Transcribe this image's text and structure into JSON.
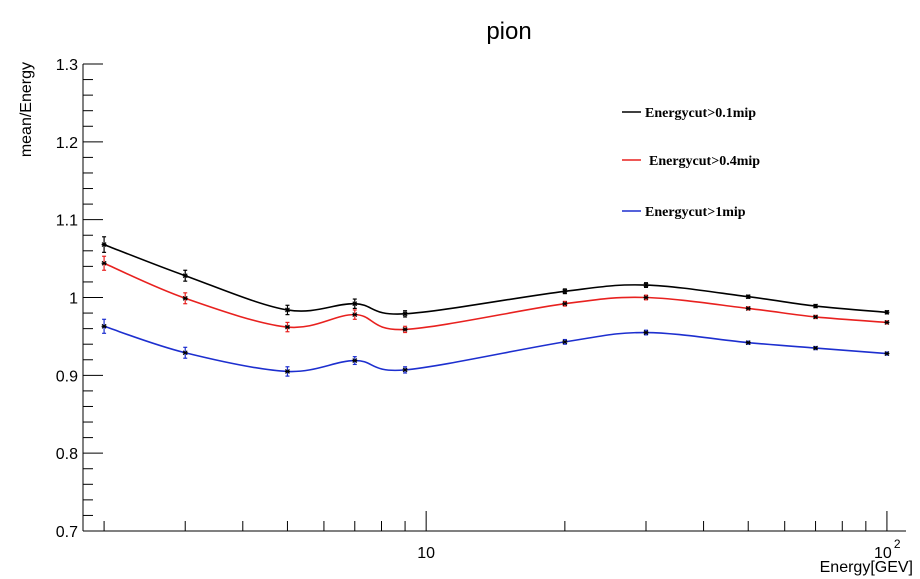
{
  "chart_data": {
    "type": "line",
    "title": "pion",
    "xlabel": "Energy[GEV]",
    "ylabel": "mean/Energy",
    "xscale": "log",
    "xlim": [
      1.8,
      110
    ],
    "ylim": [
      0.7,
      1.3
    ],
    "x_tick_labels": [
      {
        "value": 10,
        "label": "10"
      },
      {
        "value": 100,
        "label": "10",
        "exponent": "2"
      }
    ],
    "y_tick_labels": [
      "0.7",
      "0.8",
      "0.9",
      "1",
      "1.1",
      "1.2",
      "1.3"
    ],
    "y_ticks": [
      0.7,
      0.8,
      0.9,
      1.0,
      1.1,
      1.2,
      1.3
    ],
    "grid": false,
    "legend_position": "top-right",
    "x": [
      2,
      3,
      5,
      7,
      9,
      20,
      30,
      50,
      70,
      100
    ],
    "series": [
      {
        "name": "Energycut>0.1mip",
        "color": "#000000",
        "values": [
          1.068,
          1.028,
          0.984,
          0.992,
          0.979,
          1.008,
          1.016,
          1.001,
          0.989,
          0.981
        ],
        "errors": [
          0.01,
          0.007,
          0.006,
          0.006,
          0.004,
          0.003,
          0.003,
          0.002,
          0.002,
          0.002
        ]
      },
      {
        "name": "Energycut>0.4mip",
        "color": "#e8211f",
        "values": [
          1.044,
          0.999,
          0.962,
          0.978,
          0.959,
          0.992,
          1.0,
          0.986,
          0.975,
          0.968
        ],
        "errors": [
          0.009,
          0.007,
          0.006,
          0.006,
          0.004,
          0.003,
          0.003,
          0.002,
          0.002,
          0.002
        ]
      },
      {
        "name": "Energycut>1mip",
        "color": "#1d2fcf",
        "values": [
          0.963,
          0.929,
          0.905,
          0.919,
          0.907,
          0.943,
          0.955,
          0.942,
          0.935,
          0.928
        ],
        "errors": [
          0.009,
          0.007,
          0.006,
          0.005,
          0.004,
          0.003,
          0.003,
          0.002,
          0.002,
          0.002
        ]
      }
    ]
  }
}
